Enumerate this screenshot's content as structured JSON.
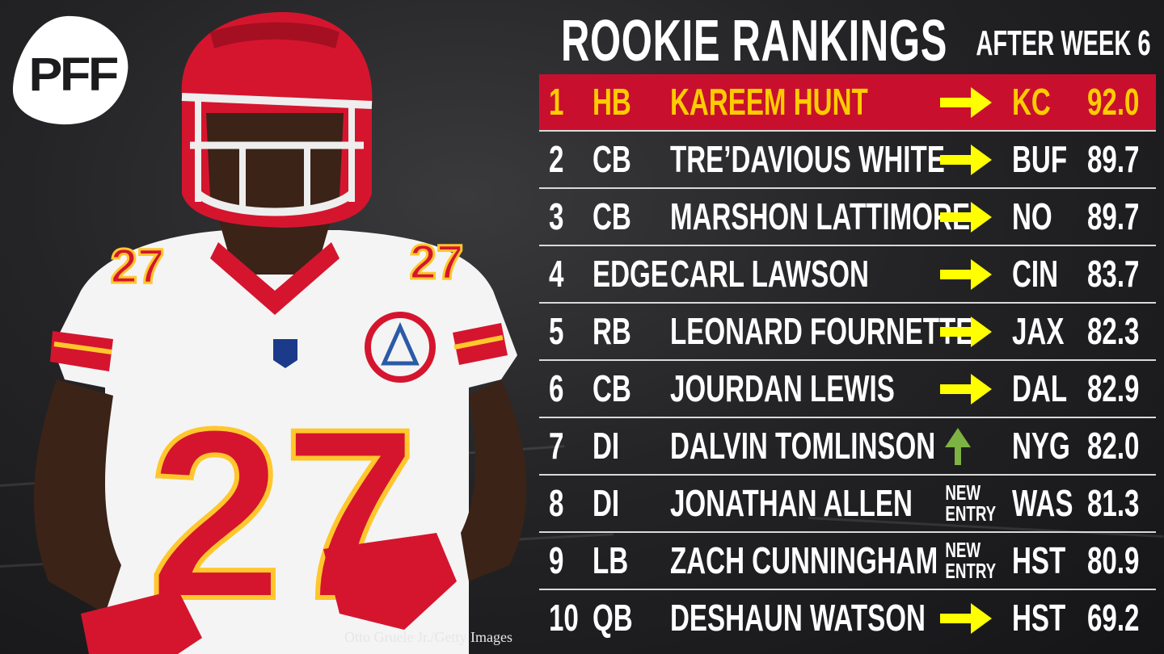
{
  "header": {
    "title": "ROOKIE RANKINGS",
    "subtitle": "AFTER WEEK 6"
  },
  "logo": {
    "text": "PFF",
    "icon": "pff-football-logo-icon"
  },
  "photo": {
    "credit": "Otto Gruele Jr./Getty Images",
    "jersey_number": "27",
    "colors": {
      "red": "#d5152e",
      "gold": "#ffc72c",
      "white": "#f4f4f4"
    }
  },
  "colors": {
    "highlight_row": "#c8102e",
    "highlight_text": "#ffcc00",
    "arrow_yellow": "#ffff00",
    "arrow_green": "#7cb342",
    "text": "#ffffff",
    "divider": "#d9d9d9"
  },
  "rankings": [
    {
      "rank": "1",
      "position": "HB",
      "name": "KAREEM HUNT",
      "movement": "same",
      "team": "KC",
      "grade": "92.0"
    },
    {
      "rank": "2",
      "position": "CB",
      "name": "TRE’DAVIOUS WHITE",
      "movement": "same",
      "team": "BUF",
      "grade": "89.7"
    },
    {
      "rank": "3",
      "position": "CB",
      "name": "MARSHON LATTIMORE",
      "movement": "same",
      "team": "NO",
      "grade": "89.7"
    },
    {
      "rank": "4",
      "position": "EDGE",
      "name": "CARL LAWSON",
      "movement": "same",
      "team": "CIN",
      "grade": "83.7"
    },
    {
      "rank": "5",
      "position": "RB",
      "name": "LEONARD FOURNETTE",
      "movement": "same",
      "team": "JAX",
      "grade": "82.3"
    },
    {
      "rank": "6",
      "position": "CB",
      "name": "JOURDAN LEWIS",
      "movement": "same",
      "team": "DAL",
      "grade": "82.9"
    },
    {
      "rank": "7",
      "position": "DI",
      "name": "DALVIN TOMLINSON",
      "movement": "up",
      "team": "NYG",
      "grade": "82.0"
    },
    {
      "rank": "8",
      "position": "DI",
      "name": "JONATHAN ALLEN",
      "movement": "new",
      "new_label_1": "NEW",
      "new_label_2": "ENTRY",
      "team": "WAS",
      "grade": "81.3"
    },
    {
      "rank": "9",
      "position": "LB",
      "name": "ZACH CUNNINGHAM",
      "movement": "new",
      "new_label_1": "NEW",
      "new_label_2": "ENTRY",
      "team": "HST",
      "grade": "80.9"
    },
    {
      "rank": "10",
      "position": "QB",
      "name": "DESHAUN WATSON",
      "movement": "same",
      "team": "HST",
      "grade": "69.2"
    }
  ]
}
